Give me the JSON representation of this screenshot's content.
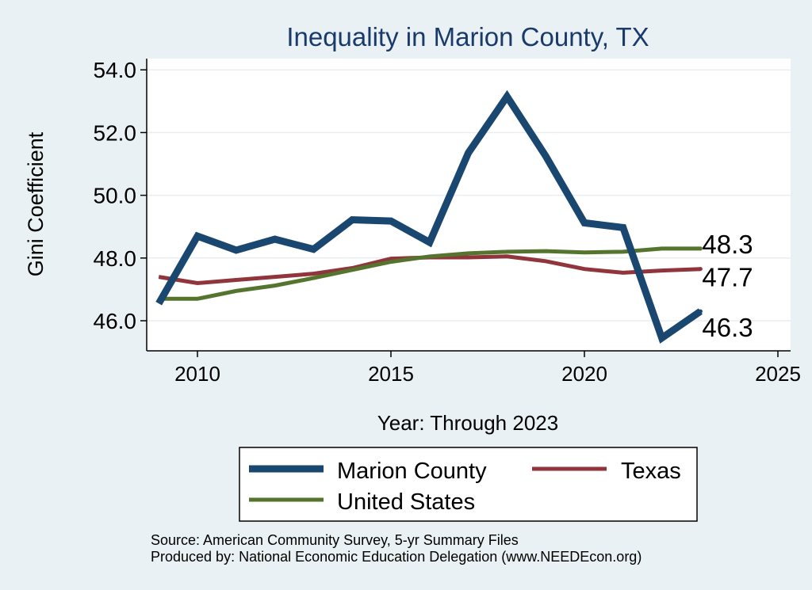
{
  "chart_data": {
    "type": "line",
    "title": "Inequality in Marion County, TX",
    "xlabel": "Year: Through 2023",
    "ylabel": "Gini Coefficient",
    "xlim": [
      2009,
      2025
    ],
    "ylim": [
      45.0,
      54.5
    ],
    "x_ticks": [
      "2010",
      "2015",
      "2020",
      "2025"
    ],
    "y_ticks": [
      "46.0",
      "48.0",
      "50.0",
      "52.0",
      "54.0"
    ],
    "grid": true,
    "x": [
      2009,
      2010,
      2011,
      2012,
      2013,
      2014,
      2015,
      2016,
      2017,
      2018,
      2019,
      2020,
      2021,
      2022,
      2023
    ],
    "series": [
      {
        "name": "Marion County",
        "color": "#1a476f",
        "values": [
          46.55,
          48.7,
          48.25,
          48.6,
          48.28,
          49.22,
          49.18,
          48.5,
          51.35,
          53.15,
          51.25,
          49.12,
          48.97,
          45.45,
          46.3
        ],
        "end_label": "46.3"
      },
      {
        "name": "Texas",
        "color": "#90353b",
        "values": [
          47.4,
          47.2,
          47.3,
          47.4,
          47.5,
          47.68,
          47.98,
          48.02,
          48.02,
          48.05,
          47.9,
          47.65,
          47.53,
          47.6,
          47.65
        ],
        "end_label": "47.7"
      },
      {
        "name": "United States",
        "color": "#55752f",
        "values": [
          46.7,
          46.7,
          46.95,
          47.12,
          47.36,
          47.62,
          47.88,
          48.05,
          48.15,
          48.2,
          48.22,
          48.18,
          48.2,
          48.3,
          48.3
        ],
        "end_label": "48.3"
      }
    ],
    "legend": {
      "position": "bottom",
      "entries": [
        "Marion County",
        "Texas",
        "United States"
      ]
    },
    "notes": [
      "Source: American Community Survey, 5-yr Summary Files",
      "Produced by: National Economic Education Delegation (www.NEEDEcon.org)"
    ]
  },
  "colors": {
    "background": "#eaf1f4",
    "plot_area": "#ffffff",
    "title": "#1a3a6b",
    "grid": "#e8eef1",
    "text": "#000000"
  }
}
